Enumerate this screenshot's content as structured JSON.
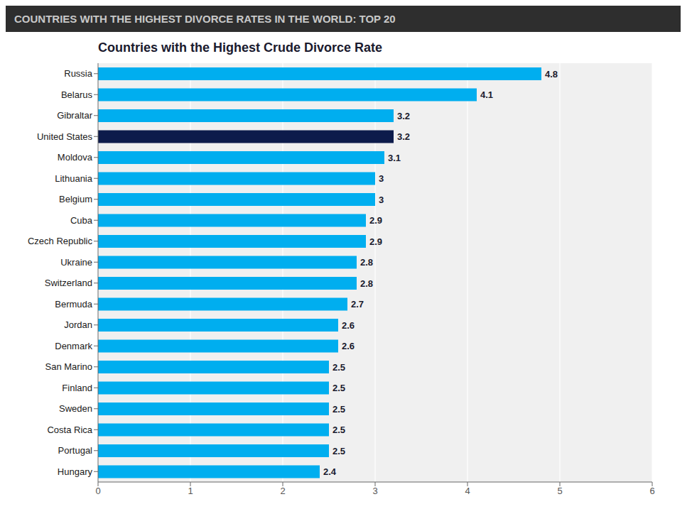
{
  "chart_data": {
    "type": "bar",
    "title": "Countries with the Highest Crude Divorce Rate",
    "subtitle": "COUNTRIES WITH THE HIGHEST DIVORCE RATES IN THE WORLD: TOP 20",
    "orientation": "horizontal",
    "categories": [
      "Russia",
      "Belarus",
      "Gibraltar",
      "United States",
      "Moldova",
      "Lithuania",
      "Belgium",
      "Cuba",
      "Czech Republic",
      "Ukraine",
      "Switzerland",
      "Bermuda",
      "Jordan",
      "Denmark",
      "San Marino",
      "Finland",
      "Sweden",
      "Costa Rica",
      "Portugal",
      "Hungary"
    ],
    "values": [
      4.8,
      4.1,
      3.2,
      3.2,
      3.1,
      3,
      3,
      2.9,
      2.9,
      2.8,
      2.8,
      2.7,
      2.6,
      2.6,
      2.5,
      2.5,
      2.5,
      2.5,
      2.5,
      2.4
    ],
    "colors": [
      "#00AEEF",
      "#00AEEF",
      "#00AEEF",
      "#0D1B4B",
      "#00AEEF",
      "#00AEEF",
      "#00AEEF",
      "#00AEEF",
      "#00AEEF",
      "#00AEEF",
      "#00AEEF",
      "#00AEEF",
      "#00AEEF",
      "#00AEEF",
      "#00AEEF",
      "#00AEEF",
      "#00AEEF",
      "#00AEEF",
      "#00AEEF",
      "#00AEEF"
    ],
    "xlim": [
      0,
      6
    ],
    "xticks": [
      0,
      1,
      2,
      3,
      4,
      5,
      6
    ],
    "grid": true,
    "data_labels": true
  }
}
